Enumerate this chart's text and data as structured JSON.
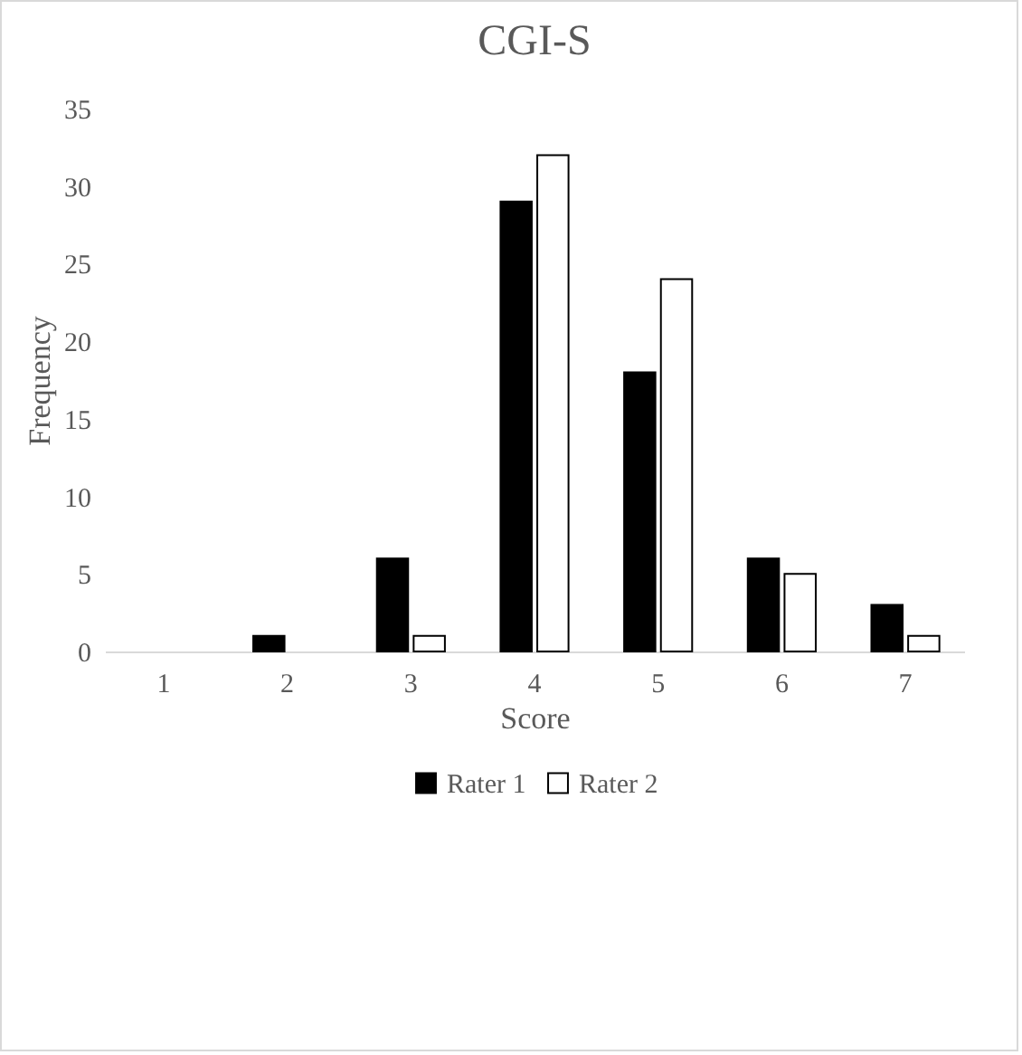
{
  "chart_data": {
    "type": "bar",
    "title": "CGI-S",
    "xlabel": "Score",
    "ylabel": "Frequency",
    "categories": [
      "1",
      "2",
      "3",
      "4",
      "5",
      "6",
      "7"
    ],
    "series": [
      {
        "name": "Rater 1",
        "color": "#000000",
        "values": [
          0,
          1,
          6,
          29,
          18,
          6,
          3
        ]
      },
      {
        "name": "Rater 2",
        "color": "#ffffff",
        "values": [
          0,
          0,
          1,
          32,
          24,
          5,
          1
        ]
      }
    ],
    "ylim": [
      0,
      35
    ],
    "yticks": [
      0,
      5,
      10,
      15,
      20,
      25,
      30,
      35
    ],
    "grid": false,
    "legend": "bottom"
  }
}
